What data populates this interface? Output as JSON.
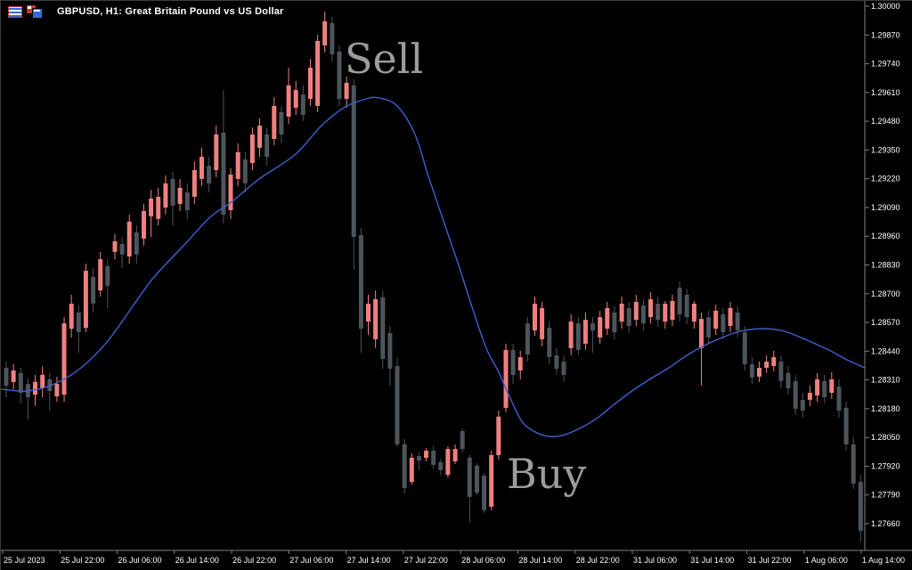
{
  "window": {
    "title": "GBPUSD, H1: Great Britain Pound vs US Dollar"
  },
  "annotations": {
    "sell": "Sell",
    "buy": "Buy"
  },
  "colors": {
    "background": "#000000",
    "bull": "#f08080",
    "bear": "#4c545c",
    "ma_line": "#4060d0",
    "axis_line": "#808080",
    "axis_text": "#ffffff",
    "annotation_text": "#9c9c9c",
    "title_text": "#ffffff"
  },
  "chart_data": {
    "type": "candlestick",
    "symbol": "GBPUSD",
    "timeframe": "H1",
    "title": "GBPUSD, H1: Great Britain Pound vs US Dollar",
    "grid": false,
    "legend_position": "none",
    "ylim": [
      1.2766,
      1.3
    ],
    "y_axis_labels": [
      "1.30000",
      "1.29870",
      "1.29740",
      "1.29610",
      "1.29480",
      "1.29350",
      "1.29220",
      "1.29090",
      "1.28960",
      "1.28830",
      "1.28700",
      "1.28570",
      "1.28440",
      "1.28310",
      "1.28180",
      "1.28050",
      "1.27920",
      "1.27790",
      "1.27660"
    ],
    "x_axis_labels": [
      "25 Jul 2023",
      "25 Jul 22:00",
      "26 Jul 06:00",
      "26 Jul 14:00",
      "26 Jul 22:00",
      "27 Jul 06:00",
      "27 Jul 14:00",
      "27 Jul 22:00",
      "28 Jul 06:00",
      "28 Jul 14:00",
      "28 Jul 22:00",
      "31 Jul 06:00",
      "31 Jul 14:00",
      "31 Jul 22:00",
      "1 Aug 06:00",
      "1 Aug 14:00"
    ],
    "candles_format": [
      "open",
      "high",
      "low",
      "close"
    ],
    "candles": [
      [
        1.28365,
        1.28393,
        1.28232,
        1.28284
      ],
      [
        1.28301,
        1.28381,
        1.28268,
        1.28353
      ],
      [
        1.28341,
        1.28365,
        1.28204,
        1.28252
      ],
      [
        1.28292,
        1.28317,
        1.28131,
        1.28232
      ],
      [
        1.28244,
        1.28333,
        1.28192,
        1.28301
      ],
      [
        1.28272,
        1.28373,
        1.28232,
        1.28333
      ],
      [
        1.28313,
        1.28341,
        1.28172,
        1.2826
      ],
      [
        1.28236,
        1.28325,
        1.28212,
        1.28292
      ],
      [
        1.28244,
        1.28594,
        1.28212,
        1.28566
      ],
      [
        1.28542,
        1.28695,
        1.28502,
        1.28655
      ],
      [
        1.28615,
        1.28647,
        1.28433,
        1.28526
      ],
      [
        1.28546,
        1.28836,
        1.28526,
        1.28804
      ],
      [
        1.28776,
        1.28816,
        1.28615,
        1.28655
      ],
      [
        1.28715,
        1.28889,
        1.28687,
        1.28856
      ],
      [
        1.28824,
        1.28856,
        1.28635,
        1.28736
      ],
      [
        1.28889,
        1.28969,
        1.28856,
        1.28937
      ],
      [
        1.28925,
        1.28957,
        1.28816,
        1.28877
      ],
      [
        1.28868,
        1.29058,
        1.28836,
        1.29026
      ],
      [
        1.28977,
        1.29009,
        1.28836,
        1.28877
      ],
      [
        1.28949,
        1.29106,
        1.28917,
        1.29074
      ],
      [
        1.2905,
        1.2917,
        1.28957,
        1.2913
      ],
      [
        1.29038,
        1.29179,
        1.29009,
        1.29138
      ],
      [
        1.2909,
        1.29235,
        1.29058,
        1.29199
      ],
      [
        1.29219,
        1.29251,
        1.29009,
        1.29098
      ],
      [
        1.29106,
        1.29219,
        1.29074,
        1.29179
      ],
      [
        1.29158,
        1.29199,
        1.29038,
        1.29078
      ],
      [
        1.29138,
        1.29299,
        1.29106,
        1.29259
      ],
      [
        1.29219,
        1.2936,
        1.29187,
        1.29319
      ],
      [
        1.29279,
        1.29319,
        1.29158,
        1.29199
      ],
      [
        1.29259,
        1.2946,
        1.29227,
        1.2942
      ],
      [
        1.29428,
        1.29621,
        1.29018,
        1.29058
      ],
      [
        1.29078,
        1.29267,
        1.29038,
        1.29239
      ],
      [
        1.29219,
        1.2938,
        1.29187,
        1.2934
      ],
      [
        1.29307,
        1.2934,
        1.29158,
        1.29199
      ],
      [
        1.29291,
        1.29452,
        1.29259,
        1.2942
      ],
      [
        1.2936,
        1.29493,
        1.29319,
        1.2946
      ],
      [
        1.2942,
        1.29452,
        1.29279,
        1.29319
      ],
      [
        1.294,
        1.29589,
        1.29372,
        1.29549
      ],
      [
        1.29521,
        1.29549,
        1.2938,
        1.2942
      ],
      [
        1.29501,
        1.29722,
        1.29468,
        1.29642
      ],
      [
        1.29541,
        1.29662,
        1.29509,
        1.29621
      ],
      [
        1.29601,
        1.29642,
        1.29481,
        1.29509
      ],
      [
        1.29581,
        1.29762,
        1.29549,
        1.29722
      ],
      [
        1.29549,
        1.29871,
        1.29521,
        1.29843
      ],
      [
        1.29823,
        1.29976,
        1.29791,
        1.29932
      ],
      [
        1.29924,
        1.29952,
        1.2975,
        1.29783
      ],
      [
        1.29795,
        1.29823,
        1.29549,
        1.29581
      ],
      [
        1.29581,
        1.29682,
        1.29541,
        1.29654
      ],
      [
        1.29642,
        1.2967,
        1.28808,
        1.28957
      ],
      [
        1.28965,
        1.28997,
        1.28433,
        1.28542
      ],
      [
        1.28574,
        1.28695,
        1.28514,
        1.28655
      ],
      [
        1.28494,
        1.28715,
        1.28454,
        1.28675
      ],
      [
        1.28683,
        1.28715,
        1.28361,
        1.28405
      ],
      [
        1.28522,
        1.28554,
        1.28284,
        1.28361
      ],
      [
        1.28373,
        1.28413,
        1.2801,
        1.28019
      ],
      [
        1.28019,
        1.28043,
        1.27797,
        1.27821
      ],
      [
        1.27849,
        1.27978,
        1.27837,
        1.27958
      ],
      [
        1.27966,
        1.27982,
        1.27902,
        1.27946
      ],
      [
        1.27958,
        1.28002,
        1.27942,
        1.2799
      ],
      [
        1.2799,
        1.2801,
        1.2791,
        1.27926
      ],
      [
        1.27938,
        1.27954,
        1.27881,
        1.27902
      ],
      [
        1.27881,
        1.2801,
        1.27869,
        1.27998
      ],
      [
        1.27942,
        1.28019,
        1.2793,
        1.27998
      ],
      [
        1.28079,
        1.28091,
        1.27982,
        1.27998
      ],
      [
        1.27958,
        1.2797,
        1.27664,
        1.27781
      ],
      [
        1.27922,
        1.27934,
        1.27789,
        1.27801
      ],
      [
        1.27877,
        1.27889,
        1.27709,
        1.27721
      ],
      [
        1.27737,
        1.2799,
        1.27721,
        1.2797
      ],
      [
        1.2797,
        1.28172,
        1.2795,
        1.28144
      ],
      [
        1.28184,
        1.28474,
        1.28164,
        1.28446
      ],
      [
        1.28446,
        1.28474,
        1.28292,
        1.28333
      ],
      [
        1.28353,
        1.28442,
        1.28313,
        1.28413
      ],
      [
        1.28566,
        1.28594,
        1.28393,
        1.28425
      ],
      [
        1.28534,
        1.28687,
        1.2851,
        1.28655
      ],
      [
        1.28494,
        1.28663,
        1.28462,
        1.28635
      ],
      [
        1.28546,
        1.28574,
        1.28381,
        1.28413
      ],
      [
        1.28421,
        1.28454,
        1.28333,
        1.28361
      ],
      [
        1.28393,
        1.28421,
        1.28301,
        1.28333
      ],
      [
        1.28454,
        1.28607,
        1.28421,
        1.28574
      ],
      [
        1.28566,
        1.28594,
        1.28421,
        1.28446
      ],
      [
        1.28474,
        1.28615,
        1.28446,
        1.28582
      ],
      [
        1.28566,
        1.28594,
        1.28433,
        1.28534
      ],
      [
        1.28502,
        1.28623,
        1.28474,
        1.28594
      ],
      [
        1.28542,
        1.28663,
        1.28514,
        1.28635
      ],
      [
        1.28615,
        1.28643,
        1.28494,
        1.28526
      ],
      [
        1.28574,
        1.28687,
        1.28542,
        1.28655
      ],
      [
        1.28635,
        1.28663,
        1.28522,
        1.28554
      ],
      [
        1.28582,
        1.28695,
        1.28554,
        1.28663
      ],
      [
        1.28647,
        1.28675,
        1.28534,
        1.28566
      ],
      [
        1.28594,
        1.28707,
        1.28566,
        1.28675
      ],
      [
        1.28655,
        1.28687,
        1.2855,
        1.28582
      ],
      [
        1.28574,
        1.28667,
        1.28542,
        1.28655
      ],
      [
        1.28582,
        1.28695,
        1.28554,
        1.28667
      ],
      [
        1.28727,
        1.28756,
        1.28574,
        1.28607
      ],
      [
        1.28695,
        1.28723,
        1.28562,
        1.28594
      ],
      [
        1.28574,
        1.28667,
        1.28542,
        1.28655
      ],
      [
        1.28454,
        1.28615,
        1.28284,
        1.28586
      ],
      [
        1.28594,
        1.28623,
        1.28474,
        1.28502
      ],
      [
        1.28542,
        1.28651,
        1.28514,
        1.28623
      ],
      [
        1.28607,
        1.28635,
        1.28494,
        1.28526
      ],
      [
        1.28554,
        1.28663,
        1.28526,
        1.28635
      ],
      [
        1.28615,
        1.28643,
        1.28502,
        1.28534
      ],
      [
        1.28526,
        1.28554,
        1.28353,
        1.28381
      ],
      [
        1.28381,
        1.28413,
        1.28292,
        1.28321
      ],
      [
        1.28325,
        1.28393,
        1.28301,
        1.28365
      ],
      [
        1.28365,
        1.28421,
        1.28341,
        1.28393
      ],
      [
        1.28373,
        1.28442,
        1.28349,
        1.28413
      ],
      [
        1.28393,
        1.28421,
        1.28272,
        1.28305
      ],
      [
        1.28341,
        1.28373,
        1.28244,
        1.28272
      ],
      [
        1.28305,
        1.28333,
        1.28152,
        1.2818
      ],
      [
        1.2822,
        1.28252,
        1.2814,
        1.28172
      ],
      [
        1.2822,
        1.28284,
        1.28192,
        1.28252
      ],
      [
        1.2824,
        1.28341,
        1.28212,
        1.28313
      ],
      [
        1.28305,
        1.28333,
        1.28204,
        1.28232
      ],
      [
        1.28252,
        1.28345,
        1.28224,
        1.28313
      ],
      [
        1.2828,
        1.28313,
        1.2814,
        1.28172
      ],
      [
        1.28184,
        1.28212,
        1.2799,
        1.28019
      ],
      [
        1.28019,
        1.28051,
        1.27817,
        1.27841
      ],
      [
        1.27849,
        1.27881,
        1.27576,
        1.27628
      ]
    ],
    "indicator": {
      "name": "Moving Average",
      "style": "smooth line",
      "points_format": [
        "x_px",
        "price"
      ],
      "points": [
        [
          0,
          1.28268
        ],
        [
          30,
          1.2826
        ],
        [
          60,
          1.28292
        ],
        [
          90,
          1.28365
        ],
        [
          120,
          1.28486
        ],
        [
          150,
          1.28655
        ],
        [
          172,
          1.28776
        ],
        [
          205,
          1.28917
        ],
        [
          235,
          1.29046
        ],
        [
          260,
          1.29118
        ],
        [
          290,
          1.29219
        ],
        [
          330,
          1.29328
        ],
        [
          360,
          1.2946
        ],
        [
          385,
          1.29541
        ],
        [
          410,
          1.29581
        ],
        [
          425,
          1.29585
        ],
        [
          445,
          1.29549
        ],
        [
          465,
          1.2942
        ],
        [
          480,
          1.29231
        ],
        [
          498,
          1.29017
        ],
        [
          515,
          1.28816
        ],
        [
          530,
          1.28627
        ],
        [
          545,
          1.28453
        ],
        [
          558,
          1.28353
        ],
        [
          570,
          1.28244
        ],
        [
          585,
          1.28123
        ],
        [
          600,
          1.28075
        ],
        [
          615,
          1.28055
        ],
        [
          630,
          1.28059
        ],
        [
          650,
          1.28091
        ],
        [
          670,
          1.28139
        ],
        [
          690,
          1.28204
        ],
        [
          710,
          1.28264
        ],
        [
          730,
          1.28317
        ],
        [
          750,
          1.28365
        ],
        [
          770,
          1.28421
        ],
        [
          790,
          1.28466
        ],
        [
          810,
          1.28502
        ],
        [
          830,
          1.2853
        ],
        [
          855,
          1.28542
        ],
        [
          880,
          1.2853
        ],
        [
          905,
          1.2849
        ],
        [
          930,
          1.28445
        ],
        [
          950,
          1.28401
        ],
        [
          970,
          1.28365
        ]
      ]
    }
  }
}
